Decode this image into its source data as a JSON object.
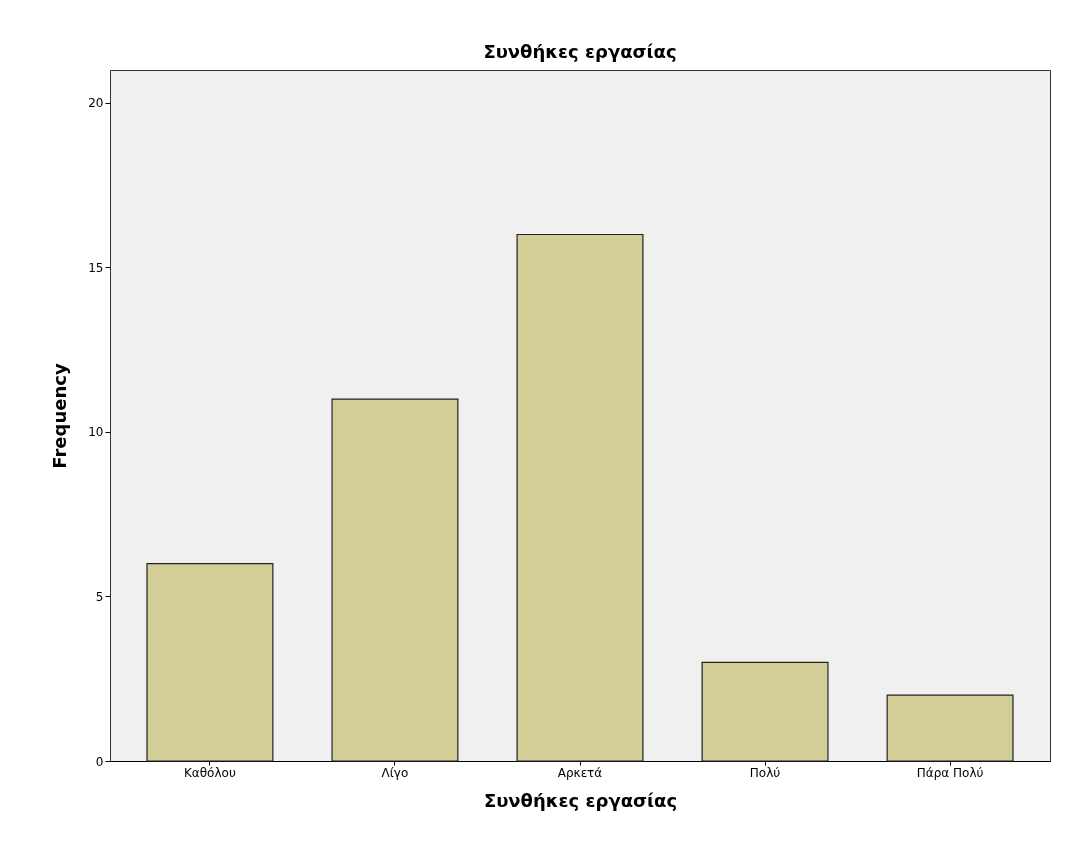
{
  "chart_data": {
    "type": "bar",
    "title": "Συνθήκες εργασίας",
    "xlabel": "Συνθήκες εργασίας",
    "ylabel": "Frequency",
    "categories": [
      "Καθόλου",
      "Λίγο",
      "Αρκετά",
      "Πολύ",
      "Πάρα Πολύ"
    ],
    "values": [
      6,
      11,
      16,
      3,
      2
    ],
    "color": "#d3ce97",
    "ylim": [
      0,
      21
    ],
    "yticks": [
      0,
      5,
      10,
      15,
      20
    ],
    "grid": false
  }
}
